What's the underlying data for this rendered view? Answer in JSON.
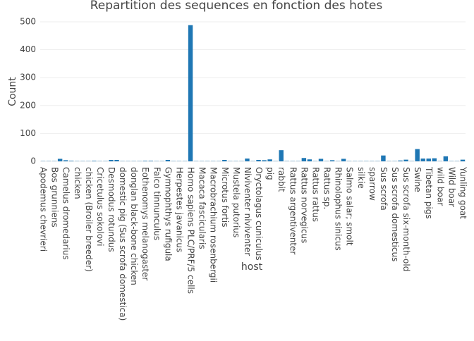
{
  "chart_data": {
    "type": "bar",
    "title": "Repartition des sequences en fonction des hotes",
    "x_label": "host",
    "y_label": "Count",
    "categories": [
      "Apodemus chevrieri",
      null,
      "Bos grunniens",
      null,
      "Camelus dromedarius",
      null,
      "chicken",
      null,
      "chicken (Broiler breeder)",
      null,
      "Cricetulus sokolovi",
      null,
      "Desmodus rotundus",
      null,
      "domestic pig (Sus scrofa domestica)",
      null,
      "donglan black-bone chicken",
      null,
      "Eothenomys melanogaster",
      null,
      "Falco tinnunculus",
      null,
      "Gymnophthys rufigula",
      null,
      "Herpestes javanicus",
      null,
      "Homo sapiens PLC/PRF/5 cells",
      null,
      "Macaca fascicularis",
      null,
      "Macrobrachium rosenbergii",
      null,
      "Microtus fortis",
      null,
      "Mustela putorius",
      null,
      "Niviventer niviventer",
      null,
      "Oryctolagus cuniculus",
      null,
      "pig",
      null,
      "rabbit",
      null,
      "Rattus argentiventer",
      null,
      "Rattus norvegicus",
      null,
      "Rattus rattus",
      null,
      "Rattus sp.",
      null,
      "Rhinolophus sinicus",
      null,
      "Salmo salar; smolt",
      null,
      "silkie",
      null,
      "sparrow",
      null,
      "Sus scrofa",
      null,
      "Sus scrofa domesticus",
      null,
      "Sus scrofa six-month-old",
      null,
      "Swine",
      null,
      "Tibetan pigs",
      null,
      "wild boar",
      null,
      "Wild boar",
      null,
      "Yunling goat"
    ],
    "values": [
      1,
      1,
      1,
      9,
      4,
      2,
      1,
      1,
      1,
      2,
      1,
      1,
      5,
      5,
      1,
      1,
      1,
      1,
      2,
      2,
      1,
      1,
      5,
      1,
      1,
      1,
      488,
      1,
      1,
      1,
      1,
      1,
      5,
      1,
      1,
      1,
      10,
      1,
      5,
      4,
      7,
      1,
      40,
      1,
      1,
      1,
      12,
      7,
      1,
      9,
      1,
      4,
      1,
      9,
      1,
      1,
      1,
      1,
      1,
      1,
      21,
      1,
      1,
      3,
      6,
      1,
      44,
      10,
      10,
      11,
      1,
      18,
      1,
      1,
      6
    ],
    "color": "#1f77b4",
    "ylim": [
      0,
      515
    ],
    "yticks": [
      0,
      100,
      200,
      300,
      400,
      500
    ],
    "grid": true
  }
}
